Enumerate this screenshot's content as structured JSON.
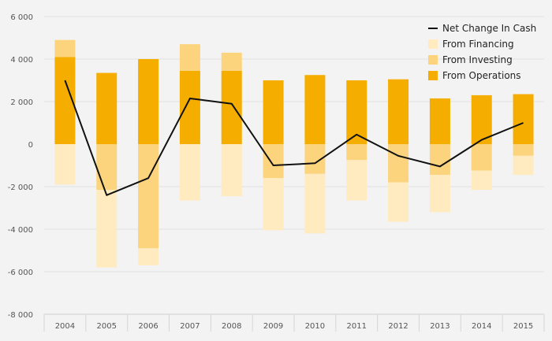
{
  "chart_data": {
    "type": "bar",
    "categories": [
      "2004",
      "2005",
      "2006",
      "2007",
      "2008",
      "2009",
      "2010",
      "2011",
      "2012",
      "2013",
      "2014",
      "2015"
    ],
    "series": [
      {
        "name": "From Operations",
        "kind": "bar",
        "color": "#f5ae00",
        "values": [
          4100,
          3350,
          4000,
          3450,
          3450,
          3000,
          3250,
          3000,
          3050,
          2150,
          2300,
          2350
        ]
      },
      {
        "name": "From Investing",
        "kind": "bar",
        "color": "#fcd47e",
        "values": [
          800,
          -2150,
          -4900,
          1250,
          850,
          -1600,
          -1400,
          -750,
          -1800,
          -1450,
          -1250,
          -550
        ]
      },
      {
        "name": "From Financing",
        "kind": "bar",
        "color": "#ffebbf",
        "values": [
          -1900,
          -3650,
          -800,
          -2650,
          -2450,
          -2450,
          -2800,
          -1900,
          -1850,
          -1750,
          -900,
          -900
        ]
      },
      {
        "name": "Net Change In Cash",
        "kind": "line",
        "color": "#111111",
        "values": [
          3000,
          -2400,
          -1600,
          2150,
          1900,
          -1000,
          -900,
          450,
          -550,
          -1050,
          200,
          1000
        ]
      }
    ],
    "y_ticks": [
      "6 000",
      "4 000",
      "2 000",
      "0",
      "-2 000",
      "-4 000",
      "-6 000",
      "-8 000"
    ],
    "ylim": [
      -8000,
      6000
    ],
    "legend_position": "top-right",
    "grid": true
  }
}
